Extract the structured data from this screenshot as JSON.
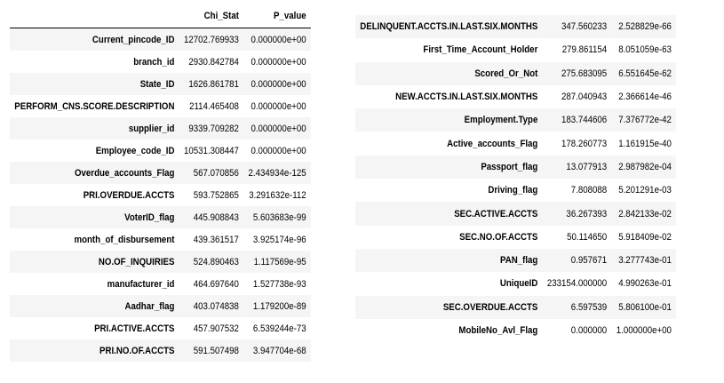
{
  "left_table": {
    "columns": [
      "Chi_Stat",
      "P_value"
    ],
    "rows": [
      [
        "Current_pincode_ID",
        "12702.769933",
        "0.000000e+00"
      ],
      [
        "branch_id",
        "2930.842784",
        "0.000000e+00"
      ],
      [
        "State_ID",
        "1626.861781",
        "0.000000e+00"
      ],
      [
        "PERFORM_CNS.SCORE.DESCRIPTION",
        "2114.465408",
        "0.000000e+00"
      ],
      [
        "supplier_id",
        "9339.709282",
        "0.000000e+00"
      ],
      [
        "Employee_code_ID",
        "10531.308447",
        "0.000000e+00"
      ],
      [
        "Overdue_accounts_Flag",
        "567.070856",
        "2.434934e-125"
      ],
      [
        "PRI.OVERDUE.ACCTS",
        "593.752865",
        "3.291632e-112"
      ],
      [
        "VoterID_flag",
        "445.908843",
        "5.603683e-99"
      ],
      [
        "month_of_disbursement",
        "439.361517",
        "3.925174e-96"
      ],
      [
        "NO.OF_INQUIRIES",
        "524.890463",
        "1.117569e-95"
      ],
      [
        "manufacturer_id",
        "464.697640",
        "1.527738e-93"
      ],
      [
        "Aadhar_flag",
        "403.074838",
        "1.179200e-89"
      ],
      [
        "PRI.ACTIVE.ACCTS",
        "457.907532",
        "6.539244e-73"
      ],
      [
        "PRI.NO.OF.ACCTS",
        "591.507498",
        "3.947704e-68"
      ]
    ]
  },
  "right_table": {
    "rows": [
      [
        "DELINQUENT.ACCTS.IN.LAST.SIX.MONTHS",
        "347.560233",
        "2.528829e-66"
      ],
      [
        "First_Time_Account_Holder",
        "279.861154",
        "8.051059e-63"
      ],
      [
        "Scored_Or_Not",
        "275.683095",
        "6.551645e-62"
      ],
      [
        "NEW.ACCTS.IN.LAST.SIX.MONTHS",
        "287.040943",
        "2.366614e-46"
      ],
      [
        "Employment.Type",
        "183.744606",
        "7.376772e-42"
      ],
      [
        "Active_accounts_Flag",
        "178.260773",
        "1.161915e-40"
      ],
      [
        "Passport_flag",
        "13.077913",
        "2.987982e-04"
      ],
      [
        "Driving_flag",
        "7.808088",
        "5.201291e-03"
      ],
      [
        "SEC.ACTIVE.ACCTS",
        "36.267393",
        "2.842133e-02"
      ],
      [
        "SEC.NO.OF.ACCTS",
        "50.114650",
        "5.918409e-02"
      ],
      [
        "PAN_flag",
        "0.957671",
        "3.277743e-01"
      ],
      [
        "UniqueID",
        "233154.000000",
        "4.990263e-01"
      ],
      [
        "SEC.OVERDUE.ACCTS",
        "6.597539",
        "5.806100e-01"
      ],
      [
        "MobileNo_Avl_Flag",
        "0.000000",
        "1.000000e+00"
      ]
    ]
  }
}
